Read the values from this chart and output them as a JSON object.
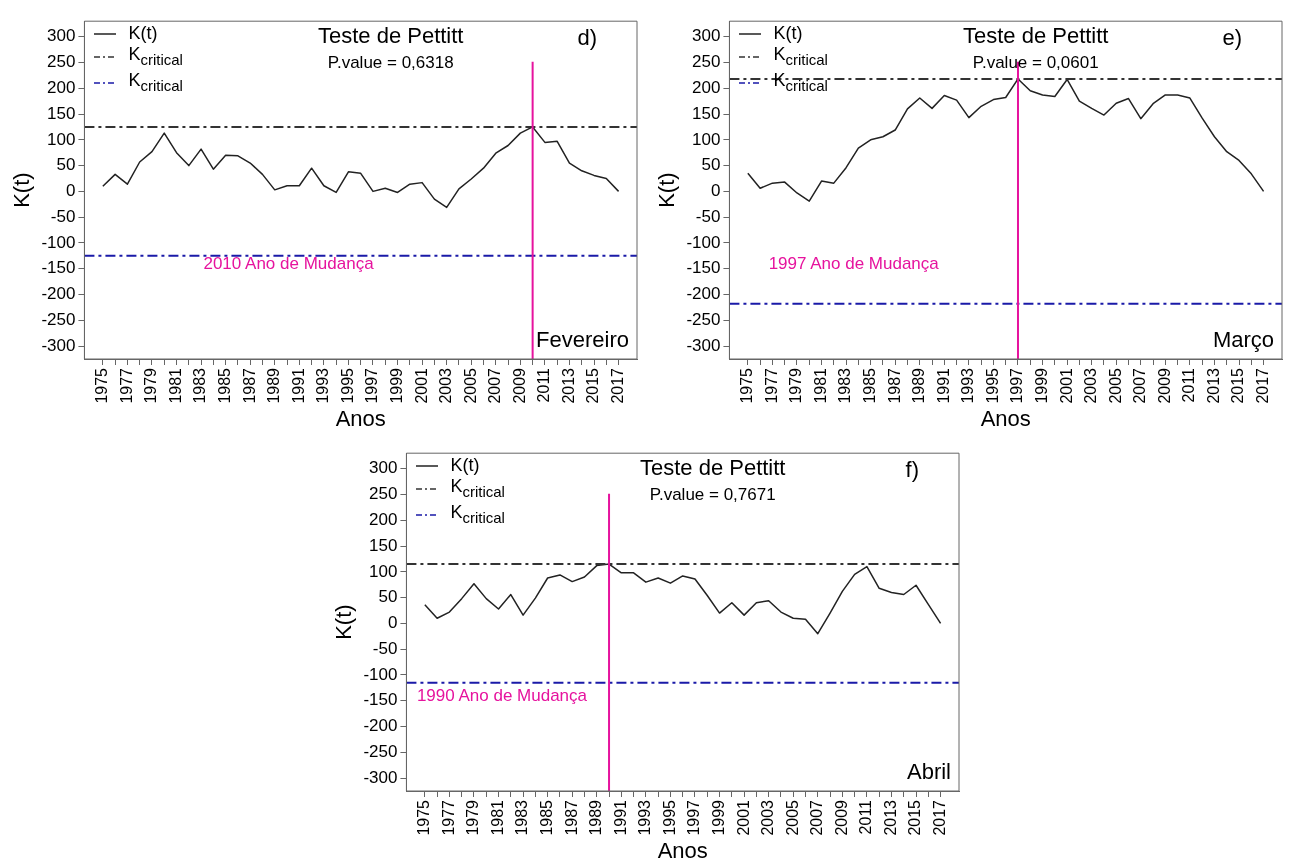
{
  "chart_data": [
    {
      "type": "line",
      "title": "Teste de Pettitt",
      "xlabel": "Anos",
      "ylabel": "K(t)",
      "annotations": [
        "P.value = 0,6318",
        "d)",
        "Fevereiro"
      ],
      "x": [
        1975,
        1976,
        1977,
        1978,
        1979,
        1980,
        1981,
        1982,
        1983,
        1984,
        1985,
        1986,
        1987,
        1988,
        1989,
        1990,
        1991,
        1992,
        1993,
        1994,
        1995,
        1996,
        1997,
        1998,
        1999,
        2000,
        2001,
        2002,
        2003,
        2004,
        2005,
        2006,
        2007,
        2008,
        2009,
        2010,
        2011,
        2012,
        2013,
        2014,
        2015,
        2016,
        2017
      ],
      "series": [
        {
          "name": "K(t)",
          "color": "#222222",
          "values": [
            10,
            33,
            14,
            57,
            77,
            113,
            75,
            50,
            82,
            43,
            70,
            69,
            55,
            33,
            3,
            11,
            11,
            45,
            11,
            -2,
            38,
            35,
            0,
            6,
            -2,
            14,
            17,
            -15,
            -31,
            5,
            24,
            45,
            74,
            89,
            113,
            125,
            95,
            97,
            55,
            40,
            31,
            25,
            0
          ]
        }
      ],
      "xlim": [
        1973.5,
        2018.5
      ],
      "xticks": [
        1975,
        {
          "value": 1976,
          "label": null
        },
        1977,
        {
          "value": 1978,
          "label": null
        },
        1979,
        {
          "value": 1980,
          "label": null
        },
        1981,
        {
          "value": 1982,
          "label": null
        },
        1983,
        {
          "value": 1984,
          "label": null
        },
        1985,
        {
          "value": 1986,
          "label": null
        },
        1987,
        {
          "value": 1988,
          "label": null
        },
        1989,
        {
          "value": 1990,
          "label": null
        },
        1991,
        {
          "value": 1992,
          "label": null
        },
        1993,
        {
          "value": 1994,
          "label": null
        },
        1995,
        {
          "value": 1996,
          "label": null
        },
        1997,
        {
          "value": 1998,
          "label": null
        },
        1999,
        {
          "value": 2000,
          "label": null
        },
        2001,
        {
          "value": 2002,
          "label": null
        },
        2003,
        {
          "value": 2004,
          "label": null
        },
        2005,
        {
          "value": 2006,
          "label": null
        },
        2007,
        {
          "value": 2008,
          "label": null
        },
        2009,
        {
          "value": 2010,
          "label": null
        },
        2011,
        {
          "value": 2012,
          "label": null
        },
        2013,
        {
          "value": 2014,
          "label": null
        },
        2015,
        {
          "value": 2016,
          "label": null
        },
        2017
      ],
      "ylim": [
        -325,
        330
      ],
      "yticks": [
        -300,
        -250,
        -200,
        -150,
        -100,
        -50,
        0,
        50,
        100,
        150,
        200,
        250,
        300
      ],
      "ref_lines": [
        {
          "axis": "y",
          "value": 125,
          "label": "K$_{critical}$",
          "color": "#333333",
          "line_style": "dashed"
        },
        {
          "axis": "y",
          "value": -125,
          "label": "K$_{critical}$",
          "color": "#1a1aa8",
          "line_style": "dashed"
        },
        {
          "axis": "x",
          "value": 2010,
          "label": "2010 Ano de Mudança",
          "color": "#e6139e"
        }
      ],
      "grid": false,
      "legend": "top left",
      "marker": "none"
    },
    {
      "type": "line",
      "title": "Teste de Pettitt",
      "xlabel": "Anos",
      "ylabel": "K(t)",
      "annotations": [
        "P.value = 0,0601",
        "e)",
        "Março"
      ],
      "x": [
        1975,
        1976,
        1977,
        1978,
        1979,
        1980,
        1981,
        1982,
        1983,
        1984,
        1985,
        1986,
        1987,
        1988,
        1989,
        1990,
        1991,
        1992,
        1993,
        1994,
        1995,
        1996,
        1997,
        1998,
        1999,
        2000,
        2001,
        2002,
        2003,
        2004,
        2005,
        2006,
        2007,
        2008,
        2009,
        2010,
        2011,
        2012,
        2013,
        2014,
        2015,
        2016,
        2017
      ],
      "series": [
        {
          "name": "K(t)",
          "color": "#222222",
          "values": [
            35,
            6,
            16,
            18,
            -3,
            -19,
            20,
            16,
            46,
            84,
            100,
            106,
            119,
            160,
            181,
            161,
            186,
            177,
            143,
            165,
            178,
            182,
            218,
            195,
            187,
            184,
            217,
            175,
            161,
            148,
            171,
            180,
            141,
            170,
            187,
            187,
            181,
            142,
            106,
            77,
            60,
            34,
            0
          ]
        }
      ],
      "xlim": [
        1973.5,
        2018.5
      ],
      "xticks": [
        1975,
        {
          "value": 1976,
          "label": null
        },
        1977,
        {
          "value": 1978,
          "label": null
        },
        1979,
        {
          "value": 1980,
          "label": null
        },
        1981,
        {
          "value": 1982,
          "label": null
        },
        1983,
        {
          "value": 1984,
          "label": null
        },
        1985,
        {
          "value": 1986,
          "label": null
        },
        1987,
        {
          "value": 1988,
          "label": null
        },
        1989,
        {
          "value": 1990,
          "label": null
        },
        1991,
        {
          "value": 1992,
          "label": null
        },
        1993,
        {
          "value": 1994,
          "label": null
        },
        1995,
        {
          "value": 1996,
          "label": null
        },
        1997,
        {
          "value": 1998,
          "label": null
        },
        1999,
        {
          "value": 2000,
          "label": null
        },
        2001,
        {
          "value": 2002,
          "label": null
        },
        2003,
        {
          "value": 2004,
          "label": null
        },
        2005,
        {
          "value": 2006,
          "label": null
        },
        2007,
        {
          "value": 2008,
          "label": null
        },
        2009,
        {
          "value": 2010,
          "label": null
        },
        2011,
        {
          "value": 2012,
          "label": null
        },
        2013,
        {
          "value": 2014,
          "label": null
        },
        2015,
        {
          "value": 2016,
          "label": null
        },
        2017
      ],
      "ylim": [
        -325,
        330
      ],
      "yticks": [
        -300,
        -250,
        -200,
        -150,
        -100,
        -50,
        0,
        50,
        100,
        150,
        200,
        250,
        300
      ],
      "ref_lines": [
        {
          "axis": "y",
          "value": 218,
          "label": "K$_{critical}$",
          "color": "#333333",
          "line_style": "dashed"
        },
        {
          "axis": "y",
          "value": -218,
          "label": "K$_{critical}$",
          "color": "#1a1aa8",
          "line_style": "dashed"
        },
        {
          "axis": "x",
          "value": 1997,
          "label": "1997 Ano de Mudança",
          "color": "#e6139e"
        }
      ],
      "grid": false,
      "legend": "top left",
      "marker": "none"
    },
    {
      "type": "line",
      "title": "Teste de Pettitt",
      "xlabel": "Anos",
      "ylabel": "K(t)",
      "annotations": [
        "P.value = 0,7671",
        "f)",
        "Abril"
      ],
      "x": [
        1975,
        1976,
        1977,
        1978,
        1979,
        1980,
        1981,
        1982,
        1983,
        1984,
        1985,
        1986,
        1987,
        1988,
        1989,
        1990,
        1991,
        1992,
        1993,
        1994,
        1995,
        1996,
        1997,
        1998,
        1999,
        2000,
        2001,
        2002,
        2003,
        2004,
        2005,
        2006,
        2007,
        2008,
        2009,
        2010,
        2011,
        2012,
        2013,
        2014,
        2015,
        2016,
        2017
      ],
      "series": [
        {
          "name": "K(t)",
          "color": "#222222",
          "values": [
            36,
            10,
            22,
            48,
            77,
            48,
            28,
            56,
            16,
            49,
            88,
            94,
            81,
            90,
            112,
            115,
            98,
            98,
            80,
            88,
            78,
            92,
            86,
            54,
            20,
            40,
            16,
            40,
            44,
            22,
            10,
            8,
            -20,
            20,
            62,
            95,
            110,
            68,
            60,
            56,
            74,
            37,
            0
          ]
        }
      ],
      "xlim": [
        1973.5,
        2018.5
      ],
      "xticks": [
        1975,
        {
          "value": 1976,
          "label": null
        },
        1977,
        {
          "value": 1978,
          "label": null
        },
        1979,
        {
          "value": 1980,
          "label": null
        },
        1981,
        {
          "value": 1982,
          "label": null
        },
        1983,
        {
          "value": 1984,
          "label": null
        },
        1985,
        {
          "value": 1986,
          "label": null
        },
        1987,
        {
          "value": 1988,
          "label": null
        },
        1989,
        {
          "value": 1990,
          "label": null
        },
        1991,
        {
          "value": 1992,
          "label": null
        },
        1993,
        {
          "value": 1994,
          "label": null
        },
        1995,
        {
          "value": 1996,
          "label": null
        },
        1997,
        {
          "value": 1998,
          "label": null
        },
        1999,
        {
          "value": 2000,
          "label": null
        },
        2001,
        {
          "value": 2002,
          "label": null
        },
        2003,
        {
          "value": 2004,
          "label": null
        },
        2005,
        {
          "value": 2006,
          "label": null
        },
        2007,
        {
          "value": 2008,
          "label": null
        },
        2009,
        {
          "value": 2010,
          "label": null
        },
        2011,
        {
          "value": 2012,
          "label": null
        },
        2013,
        {
          "value": 2014,
          "label": null
        },
        2015,
        {
          "value": 2016,
          "label": null
        },
        2017
      ],
      "ylim": [
        -325,
        330
      ],
      "yticks": [
        -300,
        -250,
        -200,
        -150,
        -100,
        -50,
        0,
        50,
        100,
        150,
        200,
        250,
        300
      ],
      "ref_lines": [
        {
          "axis": "y",
          "value": 115,
          "label": "K$_{critical}$",
          "color": "#333333",
          "line_style": "dashed"
        },
        {
          "axis": "y",
          "value": -115,
          "label": "K$_{critical}$",
          "color": "#1a1aa8",
          "line_style": "dashed"
        },
        {
          "axis": "x",
          "value": 1990,
          "label": "1990 Ano de Mudança",
          "color": "#e6139e"
        }
      ],
      "grid": false,
      "legend": "top left",
      "marker": "none"
    }
  ]
}
